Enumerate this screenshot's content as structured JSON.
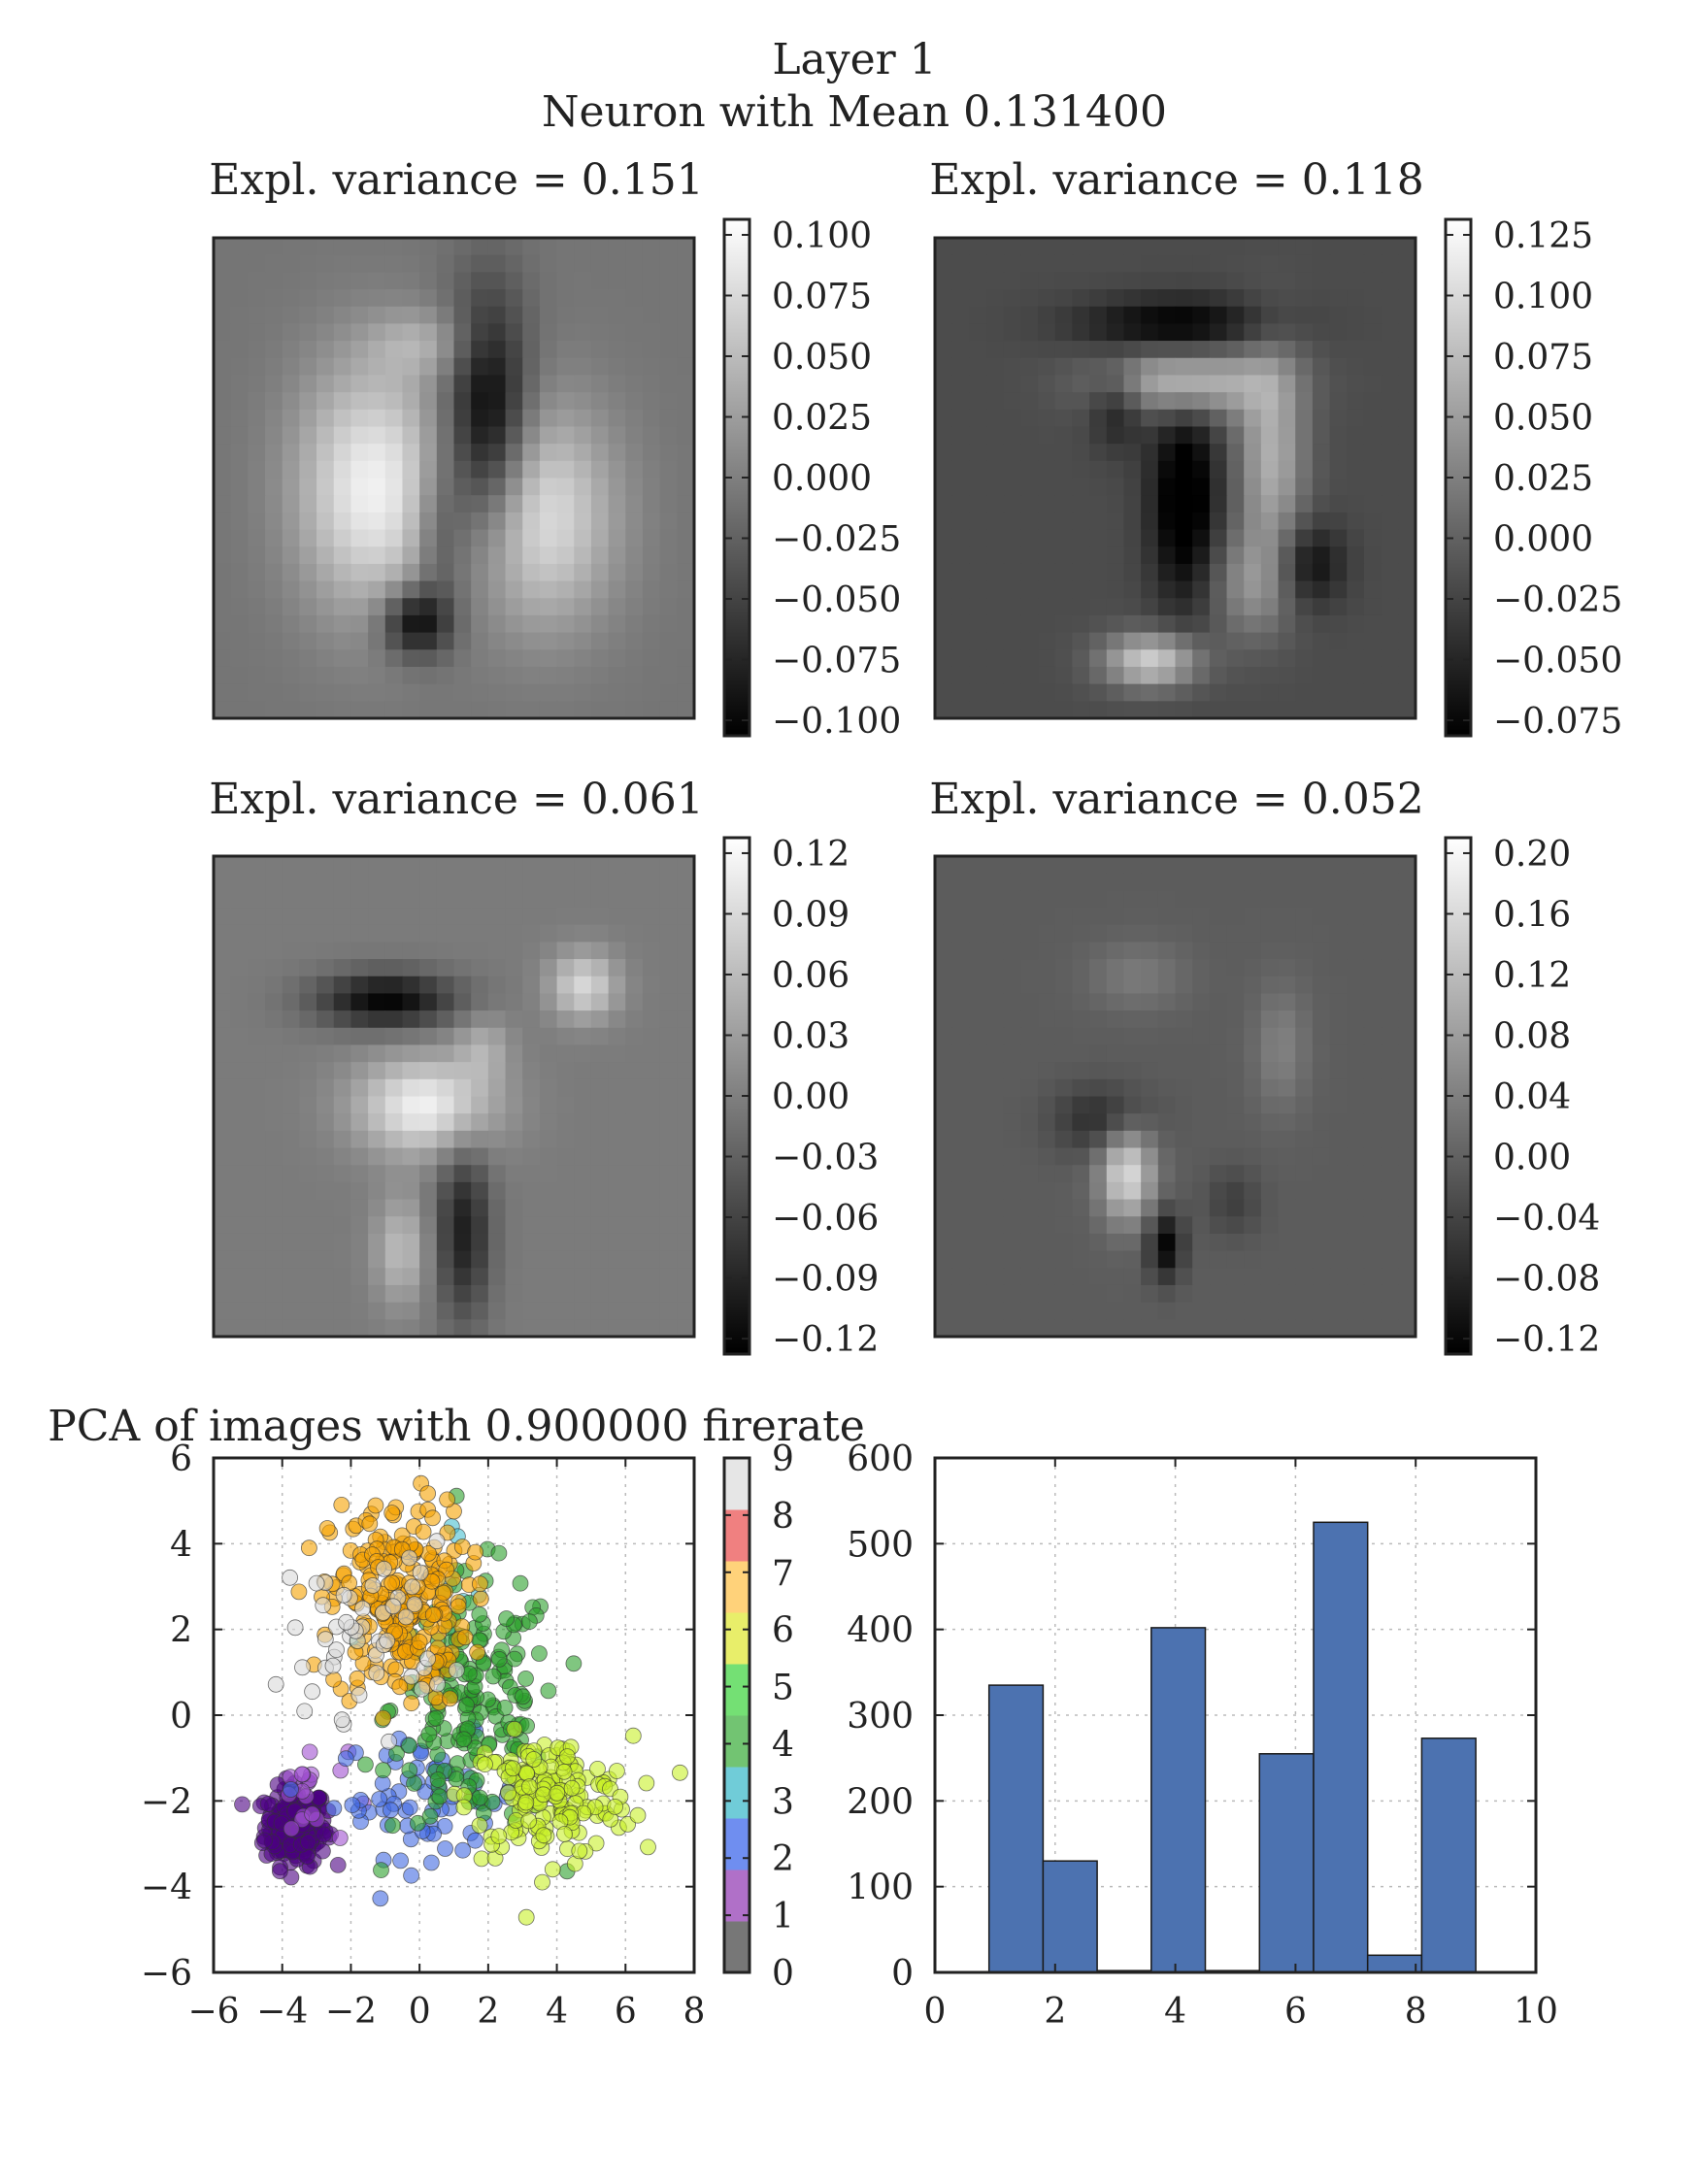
{
  "figure": {
    "suptitle_line1": "Layer 1",
    "suptitle_line2": "Neuron with Mean 0.131400"
  },
  "chart_data": [
    {
      "type": "heatmap",
      "title": "Expl. variance = 0.151",
      "colormap": "gray",
      "colorbar_ticks": [
        "0.100",
        "0.075",
        "0.050",
        "0.025",
        "0.000",
        "−0.025",
        "−0.050",
        "−0.075",
        "−0.100"
      ],
      "vmin": -0.105,
      "vmax": 0.113,
      "background_value": -0.005,
      "blobs": [
        {
          "x": 0.33,
          "y": 0.52,
          "sx": 0.11,
          "sy": 0.18,
          "v": 0.105
        },
        {
          "x": 0.57,
          "y": 0.38,
          "sx": 0.06,
          "sy": 0.18,
          "v": -0.11
        },
        {
          "x": 0.68,
          "y": 0.58,
          "sx": 0.11,
          "sy": 0.16,
          "v": 0.09
        },
        {
          "x": 0.42,
          "y": 0.8,
          "sx": 0.05,
          "sy": 0.05,
          "v": -0.1
        },
        {
          "x": 0.44,
          "y": 0.22,
          "sx": 0.08,
          "sy": 0.05,
          "v": 0.04
        },
        {
          "x": 0.47,
          "y": 0.62,
          "sx": 0.04,
          "sy": 0.12,
          "v": -0.05
        }
      ]
    },
    {
      "type": "heatmap",
      "title": "Expl. variance = 0.118",
      "colormap": "gray",
      "colorbar_ticks": [
        "0.125",
        "0.100",
        "0.075",
        "0.050",
        "0.025",
        "0.000",
        "−0.025",
        "−0.050",
        "−0.075"
      ],
      "vmin": -0.09,
      "vmax": 0.145,
      "background_value": -0.02,
      "blobs": [
        {
          "x": 0.52,
          "y": 0.3,
          "sx": 0.12,
          "sy": 0.05,
          "v": 0.11
        },
        {
          "x": 0.7,
          "y": 0.45,
          "sx": 0.05,
          "sy": 0.15,
          "v": 0.09
        },
        {
          "x": 0.52,
          "y": 0.55,
          "sx": 0.05,
          "sy": 0.15,
          "v": -0.09
        },
        {
          "x": 0.45,
          "y": 0.88,
          "sx": 0.07,
          "sy": 0.04,
          "v": 0.12
        },
        {
          "x": 0.5,
          "y": 0.18,
          "sx": 0.14,
          "sy": 0.04,
          "v": -0.07
        },
        {
          "x": 0.38,
          "y": 0.35,
          "sx": 0.04,
          "sy": 0.06,
          "v": -0.05
        },
        {
          "x": 0.66,
          "y": 0.72,
          "sx": 0.06,
          "sy": 0.08,
          "v": 0.06
        },
        {
          "x": 0.78,
          "y": 0.68,
          "sx": 0.05,
          "sy": 0.06,
          "v": -0.06
        }
      ]
    },
    {
      "type": "heatmap",
      "title": "Expl. variance = 0.061",
      "colormap": "gray",
      "colorbar_ticks": [
        "0.12",
        "0.09",
        "0.06",
        "0.03",
        "0.00",
        "−0.03",
        "−0.06",
        "−0.09",
        "−0.12"
      ],
      "vmin": -0.135,
      "vmax": 0.145,
      "background_value": 0.0,
      "blobs": [
        {
          "x": 0.36,
          "y": 0.3,
          "sx": 0.1,
          "sy": 0.04,
          "v": -0.13
        },
        {
          "x": 0.44,
          "y": 0.52,
          "sx": 0.1,
          "sy": 0.07,
          "v": 0.13
        },
        {
          "x": 0.77,
          "y": 0.27,
          "sx": 0.05,
          "sy": 0.05,
          "v": 0.1
        },
        {
          "x": 0.52,
          "y": 0.78,
          "sx": 0.04,
          "sy": 0.13,
          "v": -0.1
        },
        {
          "x": 0.39,
          "y": 0.82,
          "sx": 0.04,
          "sy": 0.08,
          "v": 0.07
        },
        {
          "x": 0.56,
          "y": 0.4,
          "sx": 0.04,
          "sy": 0.05,
          "v": 0.05
        }
      ]
    },
    {
      "type": "heatmap",
      "title": "Expl. variance = 0.052",
      "colormap": "gray",
      "colorbar_ticks": [
        "0.20",
        "0.16",
        "0.12",
        "0.08",
        "0.04",
        "0.00",
        "−0.04",
        "−0.08",
        "−0.12"
      ],
      "vmin": -0.13,
      "vmax": 0.215,
      "background_value": -0.005,
      "blobs": [
        {
          "x": 0.4,
          "y": 0.66,
          "sx": 0.04,
          "sy": 0.07,
          "v": 0.17
        },
        {
          "x": 0.48,
          "y": 0.81,
          "sx": 0.025,
          "sy": 0.05,
          "v": -0.12
        },
        {
          "x": 0.35,
          "y": 0.55,
          "sx": 0.07,
          "sy": 0.05,
          "v": -0.07
        },
        {
          "x": 0.72,
          "y": 0.4,
          "sx": 0.04,
          "sy": 0.09,
          "v": 0.05
        },
        {
          "x": 0.42,
          "y": 0.25,
          "sx": 0.07,
          "sy": 0.05,
          "v": 0.04
        },
        {
          "x": 0.62,
          "y": 0.72,
          "sx": 0.04,
          "sy": 0.05,
          "v": -0.04
        }
      ]
    },
    {
      "type": "scatter",
      "title": "PCA of images with 0.900000 firerate",
      "xlim": [
        -6,
        8
      ],
      "ylim": [
        -6,
        6
      ],
      "xticks": [
        "−6",
        "−4",
        "−2",
        "0",
        "2",
        "4",
        "6",
        "8"
      ],
      "yticks": [
        "6",
        "4",
        "2",
        "0",
        "−2",
        "−4",
        "−6"
      ],
      "grid": true,
      "colorbar_ticks": [
        "9",
        "8",
        "7",
        "6",
        "5",
        "4",
        "3",
        "2",
        "1",
        "0"
      ],
      "clusters": [
        {
          "label": 0,
          "color": "#4b0082",
          "n": 220,
          "cx": -3.6,
          "cy": -2.6,
          "sx": 0.45,
          "sy": 0.45
        },
        {
          "label": 1,
          "color": "#a050d0",
          "n": 18,
          "cx": -3.3,
          "cy": -1.9,
          "sx": 0.6,
          "sy": 0.6
        },
        {
          "label": 2,
          "color": "#4169e1",
          "n": 70,
          "cx": 0.3,
          "cy": -1.9,
          "sx": 1.4,
          "sy": 0.7
        },
        {
          "label": 3,
          "color": "#48c0d0",
          "n": 6,
          "cx": 0.8,
          "cy": 3.0,
          "sx": 0.5,
          "sy": 0.6
        },
        {
          "label": 4,
          "color": "#2ca02c",
          "n": 180,
          "cx": 1.6,
          "cy": 0.2,
          "sx": 1.2,
          "sy": 1.5
        },
        {
          "label": 6,
          "color": "#c8f028",
          "n": 170,
          "cx": 3.8,
          "cy": -1.9,
          "sx": 1.2,
          "sy": 0.7
        },
        {
          "label": 7,
          "color": "#f5a200",
          "n": 240,
          "cx": -0.6,
          "cy": 2.6,
          "sx": 1.0,
          "sy": 1.2
        },
        {
          "label": 9,
          "color": "#d9d9d9",
          "n": 50,
          "cx": -1.5,
          "cy": 2.0,
          "sx": 1.2,
          "sy": 1.0
        }
      ]
    },
    {
      "type": "bar",
      "title": "",
      "xlim": [
        0,
        10
      ],
      "ylim": [
        0,
        600
      ],
      "xticks": [
        "0",
        "2",
        "4",
        "6",
        "8",
        "10"
      ],
      "yticks": [
        "600",
        "500",
        "400",
        "300",
        "200",
        "100",
        "0"
      ],
      "grid": true,
      "bar_color": "#4c72b0",
      "bins": [
        {
          "x0": 0.9,
          "x1": 1.8,
          "value": 335
        },
        {
          "x0": 1.8,
          "x1": 2.7,
          "value": 130
        },
        {
          "x0": 2.7,
          "x1": 3.6,
          "value": 2
        },
        {
          "x0": 3.6,
          "x1": 4.5,
          "value": 402
        },
        {
          "x0": 4.5,
          "x1": 5.4,
          "value": 2
        },
        {
          "x0": 5.4,
          "x1": 6.3,
          "value": 255
        },
        {
          "x0": 6.3,
          "x1": 7.2,
          "value": 525
        },
        {
          "x0": 7.2,
          "x1": 8.1,
          "value": 20
        },
        {
          "x0": 8.1,
          "x1": 9.0,
          "value": 273
        }
      ]
    }
  ]
}
